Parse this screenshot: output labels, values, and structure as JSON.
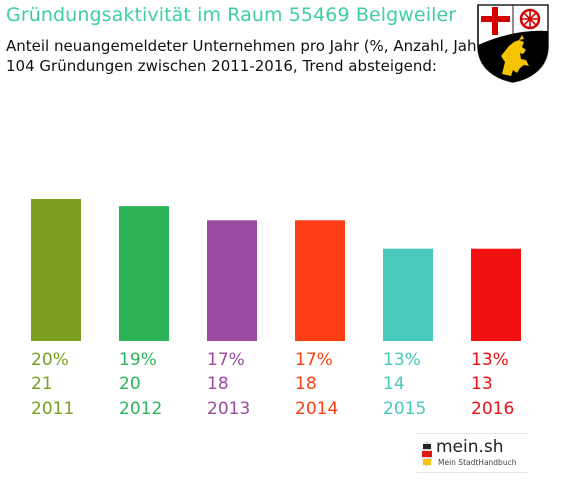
{
  "header": {
    "title": "Gründungsaktivität im Raum 55469 Belgweiler",
    "subtitle_line1": "Anteil neuangemeldeter Unternehmen pro Jahr (%, Anzahl, Jahr)",
    "subtitle_line2": "104 Gründungen zwischen 2011-2016, Trend absteigend:"
  },
  "crest": {
    "icon": "rhineland-palatinate-coat-of-arms-icon",
    "colors": {
      "cross": "#d40000",
      "wheel": "#d40000",
      "lion_field": "#000000",
      "lion": "#f5c400"
    }
  },
  "chart_data": {
    "type": "bar",
    "categories": [
      "2011",
      "2012",
      "2013",
      "2014",
      "2015",
      "2016"
    ],
    "values": [
      20,
      19,
      17,
      17,
      13,
      13
    ],
    "counts": [
      21,
      20,
      18,
      18,
      14,
      13
    ],
    "percent_labels": [
      "20%",
      "19%",
      "17%",
      "17%",
      "13%",
      "13%"
    ],
    "colors": [
      "#7a9e1f",
      "#2db357",
      "#9a4aa0",
      "#ff3d14",
      "#48c9bb",
      "#f01010"
    ],
    "total": 104,
    "trend": "absteigend",
    "grid": false,
    "legend": "none"
  },
  "logo": {
    "name": "mein.sh",
    "tagline": "Mein StadtHandbuch",
    "icon": "germany-map-icon"
  }
}
